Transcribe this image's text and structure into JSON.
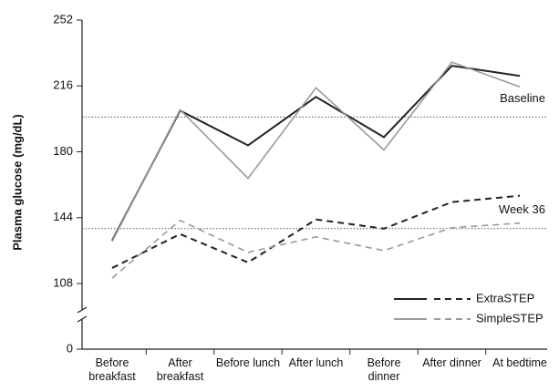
{
  "chart_data": {
    "type": "line",
    "y_label": "Plasma glucose (mg/dL)",
    "categories": [
      "Before breakfast",
      "After breakfast",
      "Before lunch",
      "After lunch",
      "Before dinner",
      "After dinner",
      "At bedtime"
    ],
    "series": [
      {
        "name": "ExtraSTEP",
        "color": "#222222",
        "values": [
          131.5,
          202.5,
          183.5,
          210,
          188,
          227,
          221.5
        ],
        "values_week36": [
          116.5,
          135,
          119.5,
          143,
          138,
          152.5,
          156
        ]
      },
      {
        "name": "SimpleSTEP",
        "color": "#9a9a9a",
        "values": [
          131,
          203,
          165.5,
          215,
          181,
          229,
          215.5
        ],
        "values_week36": [
          111,
          142.5,
          125,
          133.5,
          126,
          138.5,
          141
        ]
      }
    ],
    "reference_lines": [
      {
        "label": "Baseline",
        "value": 199
      },
      {
        "label": "Week 36",
        "value": 138
      }
    ],
    "ylim": [
      0,
      252
    ],
    "yticks": [
      0,
      108,
      144,
      180,
      216,
      252
    ],
    "axis_break": true,
    "legend": "lower right"
  }
}
